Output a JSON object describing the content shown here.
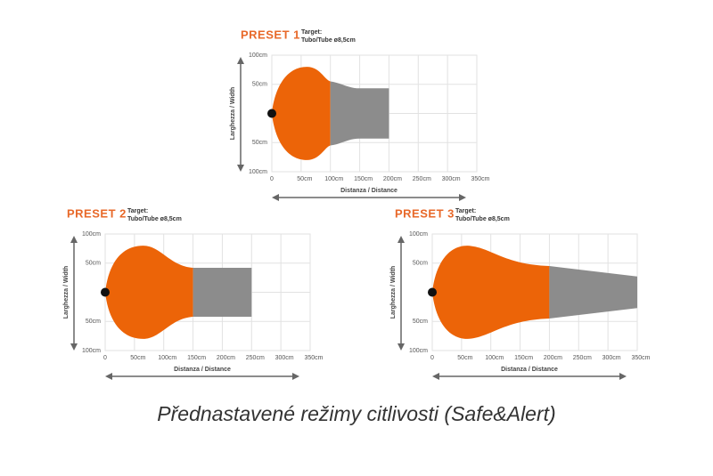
{
  "presets": [
    {
      "title": "PRESET 1",
      "target_label": "Target:",
      "target_value": "Tubo/Tube ø8,5cm",
      "y_labels": [
        "100cm",
        "50cm",
        "50cm",
        "100cm"
      ],
      "x_labels": [
        "0",
        "50cm",
        "100cm",
        "150cm",
        "200cm",
        "250cm",
        "300cm",
        "350cm"
      ],
      "x_axis_title": "Distanza / Distance",
      "y_axis_title": "Larghezza / Width"
    },
    {
      "title": "PRESET 2",
      "target_label": "Target:",
      "target_value": "Tubo/Tube ø8,5cm",
      "y_labels": [
        "100cm",
        "50cm",
        "50cm",
        "100cm"
      ],
      "x_labels": [
        "0",
        "50cm",
        "100cm",
        "150cm",
        "200cm",
        "250cm",
        "300cm",
        "350cm"
      ],
      "x_axis_title": "Distanza / Distance",
      "y_axis_title": "Larghezza / Width"
    },
    {
      "title": "PRESET 3",
      "target_label": "Target:",
      "target_value": "Tubo/Tube ø8,5cm",
      "y_labels": [
        "100cm",
        "50cm",
        "50cm",
        "100cm"
      ],
      "x_labels": [
        "0",
        "50cm",
        "100cm",
        "150cm",
        "200cm",
        "250cm",
        "300cm",
        "350cm"
      ],
      "x_axis_title": "Distanza / Distance",
      "y_axis_title": "Larghezza / Width"
    }
  ],
  "caption": "Přednastavené režimy citlivosti (Safe&Alert)"
}
